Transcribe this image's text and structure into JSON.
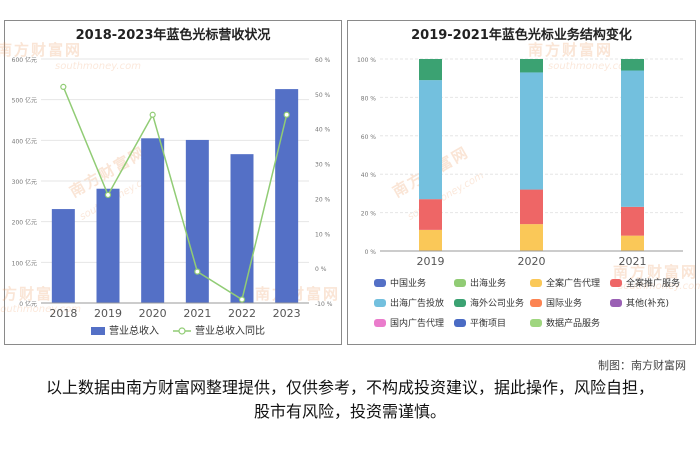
{
  "chart_data": [
    {
      "type": "bar",
      "title": "2018-2023年蓝色光标营收状况",
      "categories": [
        "2018",
        "2019",
        "2020",
        "2021",
        "2022",
        "2023"
      ],
      "y_left": {
        "range": [
          0,
          600
        ],
        "ticks": [
          "0 亿元",
          "100 亿元",
          "200 亿元",
          "300 亿元",
          "400 亿元",
          "500 亿元",
          "600 亿元"
        ]
      },
      "y_right": {
        "range": [
          -10,
          60
        ],
        "ticks": [
          "-10 %",
          "0 %",
          "10 %",
          "20 %",
          "30 %",
          "40 %",
          "50 %",
          "60 %"
        ]
      },
      "series": [
        {
          "name": "营业总收入",
          "type": "bar",
          "axis": "left",
          "color": "#5470c6",
          "values": [
            231,
            281,
            405,
            401,
            366,
            526
          ]
        },
        {
          "name": "营业总收入同比",
          "type": "line",
          "axis": "right",
          "color": "#91cc75",
          "values": [
            52,
            21,
            44,
            -1,
            -9,
            44
          ]
        }
      ],
      "legend_position": "bottom",
      "grid": "horizontal"
    },
    {
      "type": "bar",
      "stacked": true,
      "title": "2019-2021年蓝色光标业务结构变化",
      "categories": [
        "2019",
        "2020",
        "2021"
      ],
      "y_ticks": [
        "0 %",
        "20 %",
        "40 %",
        "60 %",
        "80 %",
        "100 %"
      ],
      "series": [
        {
          "name": "中国业务",
          "color": "#5470c6",
          "values": [
            0,
            0,
            0
          ]
        },
        {
          "name": "出海业务",
          "color": "#91cc75",
          "values": [
            0,
            0,
            0
          ]
        },
        {
          "name": "全案广告代理",
          "color": "#fac858",
          "values": [
            11,
            14,
            8
          ]
        },
        {
          "name": "全案推广服务",
          "color": "#ee6666",
          "values": [
            16,
            18,
            15
          ]
        },
        {
          "name": "出海广告投放",
          "color": "#73c0de",
          "values": [
            62,
            61,
            71
          ]
        },
        {
          "name": "海外公司业务",
          "color": "#3ba272",
          "values": [
            11,
            7,
            6
          ]
        },
        {
          "name": "国际业务",
          "color": "#fc8452",
          "values": [
            0,
            0,
            0
          ]
        },
        {
          "name": "其他(补充)",
          "color": "#9a60b4",
          "values": [
            0,
            0,
            0
          ]
        },
        {
          "name": "国内广告代理",
          "color": "#ea7ccc",
          "values": [
            0,
            0,
            0
          ]
        },
        {
          "name": "平衡项目",
          "color": "#4a6bc4",
          "values": [
            0,
            0,
            0
          ]
        },
        {
          "name": "数据产品服务",
          "color": "#9fd67f",
          "values": [
            0,
            0,
            0
          ]
        }
      ],
      "legend_position": "bottom"
    }
  ],
  "watermark": {
    "text": "南方财富网",
    "sub": "southmoney.com"
  },
  "credit": "制图：南方财富网",
  "disclaimer": "以上数据由南方财富网整理提供，仅供参考，不构成投资建议，据此操作，风险自担，股市有风险，投资需谨慎。"
}
